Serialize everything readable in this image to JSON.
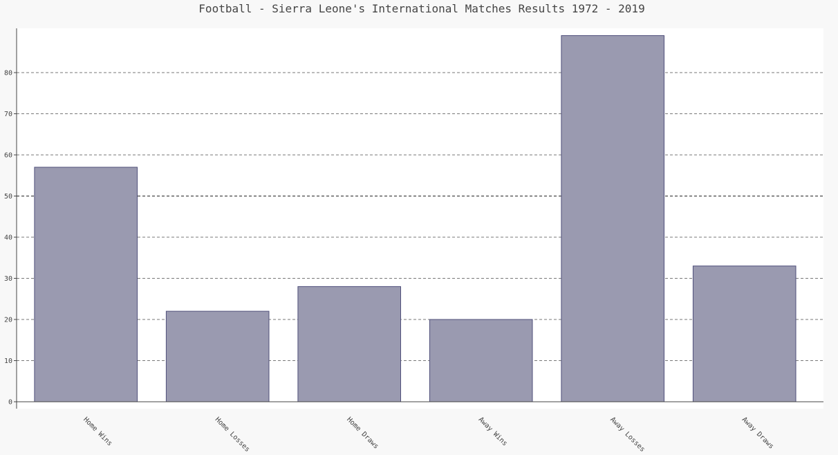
{
  "chart_data": {
    "type": "bar",
    "title": "Football - Sierra Leone's International Matches Results 1972 - 2019",
    "xlabel": "",
    "ylabel": "",
    "categories": [
      "Home Wins",
      "Home Losses",
      "Home Draws",
      "Away Wins",
      "Away Losses",
      "Away Draws"
    ],
    "values": [
      57,
      22,
      28,
      20,
      89,
      33
    ],
    "ylim": [
      0,
      90
    ],
    "yticks": [
      0,
      10,
      20,
      30,
      40,
      50,
      60,
      70,
      80
    ],
    "grid": true,
    "legend": "none",
    "colors": {
      "bar_fill": "#9a9ab0",
      "bar_stroke": "#4f4f7a",
      "background": "#f8f8f8",
      "plot_background": "#ffffff"
    }
  }
}
